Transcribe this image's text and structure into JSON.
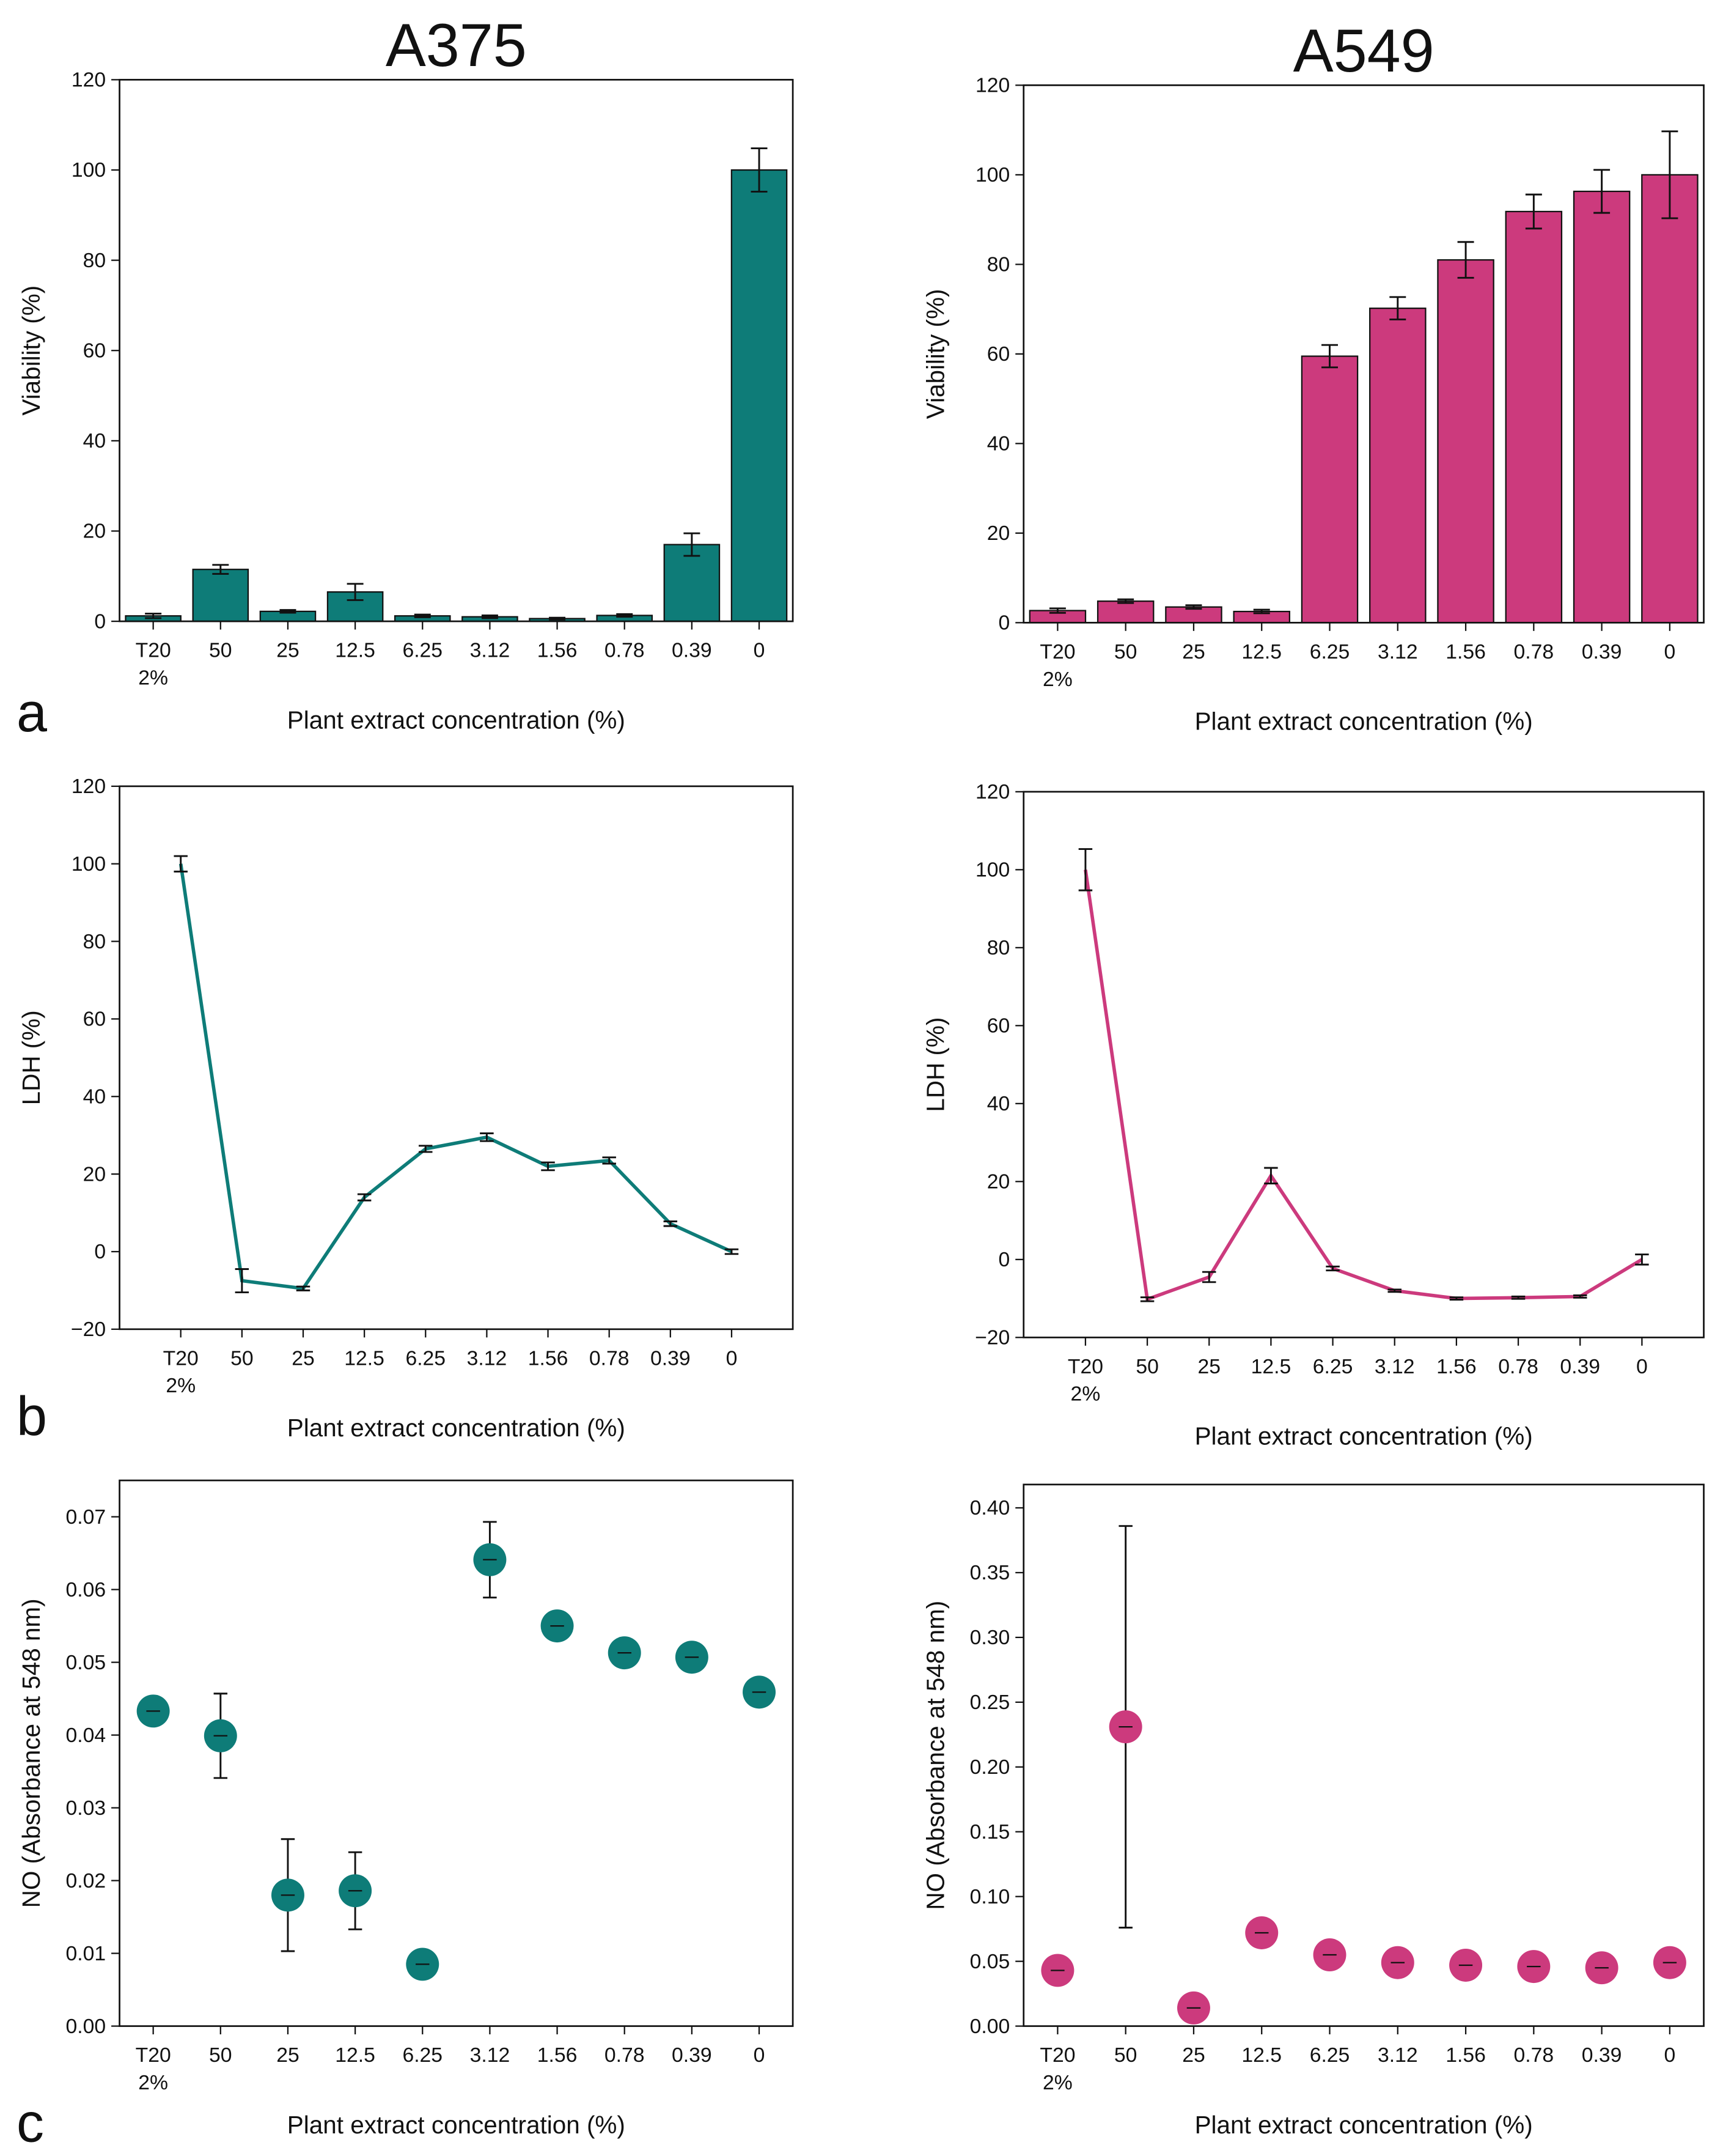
{
  "panel_labels": [
    "a",
    "b",
    "c"
  ],
  "chart_data": [
    {
      "type": "bar",
      "title": "A375",
      "x_label": "Plant extract concentration (%)",
      "y_label": "Viability (%)",
      "categories": [
        "T20 2%",
        "50",
        "25",
        "12.5",
        "6.25",
        "3.12",
        "1.56",
        "0.78",
        "0.39",
        "0"
      ],
      "color": "#0e7c78",
      "values": [
        1.2,
        11.5,
        2.2,
        6.5,
        1.2,
        1.0,
        0.6,
        1.3,
        17,
        100
      ],
      "errors": [
        0.5,
        1,
        0.3,
        1.8,
        0.3,
        0.3,
        0.2,
        0.3,
        2.5,
        4.8
      ],
      "ylim": [
        0,
        120
      ],
      "yticks": [
        0,
        20,
        40,
        60,
        80,
        100,
        120
      ]
    },
    {
      "type": "bar",
      "title": "A549",
      "x_label": "Plant extract concentration (%)",
      "y_label": "Viability (%)",
      "categories": [
        "T20 2%",
        "50",
        "25",
        "12.5",
        "6.25",
        "3.12",
        "1.56",
        "0.78",
        "0.39",
        "0"
      ],
      "color": "#cc3a7d",
      "values": [
        2.7,
        4.8,
        3.5,
        2.5,
        59.5,
        70.2,
        81,
        91.8,
        96.3,
        100
      ],
      "errors": [
        0.5,
        0.4,
        0.4,
        0.4,
        2.5,
        2.5,
        4,
        3.8,
        4.8,
        9.7
      ],
      "ylim": [
        0,
        120
      ],
      "yticks": [
        0,
        20,
        40,
        60,
        80,
        100,
        120
      ]
    },
    {
      "type": "line",
      "x_label": "Plant extract concentration (%)",
      "y_label": "LDH (%)",
      "categories": [
        "T20 2%",
        "50",
        "25",
        "12.5",
        "6.25",
        "3.12",
        "1.56",
        "0.78",
        "0.39",
        "0"
      ],
      "color": "#0e7c78",
      "values": [
        100,
        -7.5,
        -9.5,
        14,
        26.5,
        29.5,
        22,
        23.5,
        7.2,
        0
      ],
      "errors": [
        2,
        3,
        0.5,
        0.8,
        0.8,
        1,
        1,
        0.8,
        0.6,
        0.6
      ],
      "ylim": [
        -20,
        120
      ],
      "yticks": [
        {
          "value": -20,
          "label": "−20"
        },
        0,
        20,
        40,
        60,
        80,
        100,
        120
      ]
    },
    {
      "type": "line",
      "x_label": "Plant extract concentration (%)",
      "y_label": "LDH (%)",
      "categories": [
        "T20 2%",
        "50",
        "25",
        "12.5",
        "6.25",
        "3.12",
        "1.56",
        "0.78",
        "0.39",
        "0"
      ],
      "color": "#cc3a7d",
      "values": [
        100,
        -10.2,
        -4.5,
        21.5,
        -2.3,
        -8,
        -10,
        -9.8,
        -9.5,
        0
      ],
      "errors": [
        5.3,
        0.5,
        1.3,
        2,
        0.5,
        0.3,
        0.3,
        0.3,
        0.3,
        1.3
      ],
      "ylim": [
        -20,
        120
      ],
      "yticks": [
        {
          "value": -20,
          "label": "−20"
        },
        0,
        20,
        40,
        60,
        80,
        100,
        120
      ]
    },
    {
      "type": "scatter",
      "x_label": "Plant extract concentration (%)",
      "y_label": "NO (Absorbance at 548 nm)",
      "categories": [
        "T20 2%",
        "50",
        "25",
        "12.5",
        "6.25",
        "3.12",
        "1.56",
        "0.78",
        "0.39",
        "0"
      ],
      "color": "#0e7c78",
      "values": [
        0.0433,
        0.0399,
        0.018,
        0.0186,
        0.0085,
        0.0641,
        0.055,
        0.0513,
        0.0507,
        0.0459
      ],
      "errors": [
        0.001,
        0.0058,
        0.0077,
        0.0053,
        0.0012,
        0.0052,
        0.0012,
        0.0015,
        0.0015,
        0.0015
      ],
      "ylim": [
        0,
        0.075
      ],
      "yticks": [
        {
          "value": 0,
          "label": "0.00"
        },
        0.01,
        0.02,
        0.03,
        0.04,
        0.05,
        0.06,
        0.07
      ]
    },
    {
      "type": "scatter",
      "x_label": "Plant extract concentration (%)",
      "y_label": "NO (Absorbance at 548 nm)",
      "categories": [
        "T20 2%",
        "50",
        "25",
        "12.5",
        "6.25",
        "3.12",
        "1.56",
        "0.78",
        "0.39",
        "0"
      ],
      "color": "#cc3a7d",
      "values": [
        0.043,
        0.231,
        0.014,
        0.072,
        0.055,
        0.049,
        0.047,
        0.046,
        0.045,
        0.049
      ],
      "errors": [
        0.008,
        0.155,
        0.01,
        0.008,
        0.008,
        0.008,
        0.008,
        0.008,
        0.008,
        0.008
      ],
      "ylim": [
        0,
        0.418
      ],
      "yticks": [
        {
          "value": 0,
          "label": "0.00"
        },
        0.05,
        {
          "value": 0.1,
          "label": "0.10"
        },
        0.15,
        {
          "value": 0.2,
          "label": "0.20"
        },
        0.25,
        {
          "value": 0.3,
          "label": "0.30"
        },
        0.35,
        {
          "value": 0.4,
          "label": "0.40"
        }
      ]
    }
  ]
}
